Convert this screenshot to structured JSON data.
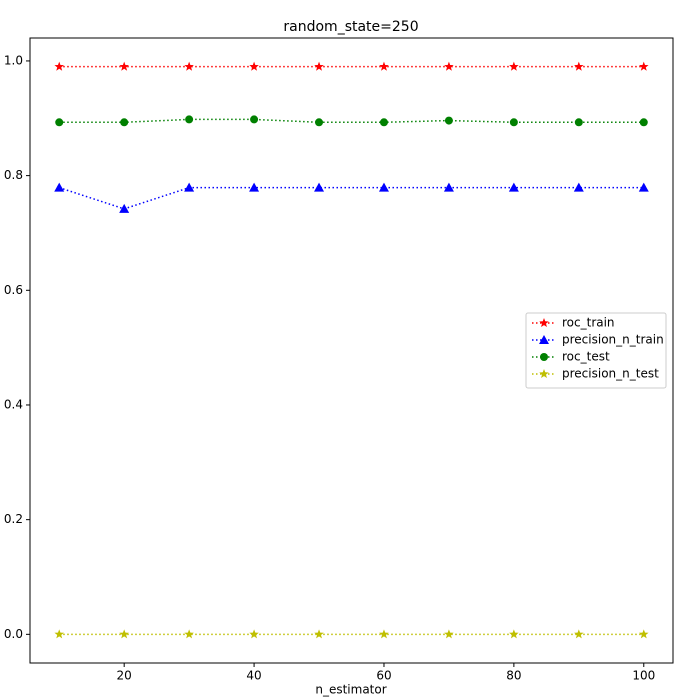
{
  "chart_data": {
    "type": "line",
    "title": "random_state=250",
    "x_label": "n_estimator",
    "x": [
      10,
      20,
      30,
      40,
      50,
      60,
      70,
      80,
      90,
      100
    ],
    "series": [
      {
        "name": "roc_train",
        "color": "#ff0000",
        "marker": "star",
        "values": [
          0.99,
          0.99,
          0.99,
          0.99,
          0.99,
          0.99,
          0.99,
          0.99,
          0.99,
          0.99
        ]
      },
      {
        "name": "precision_n_train",
        "color": "#0000ff",
        "marker": "triangle",
        "values": [
          0.779,
          0.742,
          0.779,
          0.779,
          0.779,
          0.779,
          0.779,
          0.779,
          0.779,
          0.779
        ]
      },
      {
        "name": "roc_test",
        "color": "#008000",
        "marker": "circle",
        "values": [
          0.893,
          0.893,
          0.898,
          0.898,
          0.893,
          0.893,
          0.896,
          0.893,
          0.893,
          0.893
        ]
      },
      {
        "name": "precision_n_test",
        "color": "#bfbf00",
        "marker": "star",
        "values": [
          0,
          0,
          0,
          0,
          0,
          0,
          0,
          0,
          0,
          0
        ]
      }
    ],
    "xlim": [
      5.5,
      104.5
    ],
    "ylim": [
      -0.05,
      1.04
    ],
    "xticks": [
      20,
      40,
      60,
      80,
      100
    ],
    "yticks": [
      {
        "value": 0,
        "label": "0.0"
      },
      0.2,
      0.4,
      0.6,
      0.8,
      {
        "value": 1,
        "label": "1.0"
      }
    ],
    "linestyle": "dotted",
    "legend": "center right"
  }
}
